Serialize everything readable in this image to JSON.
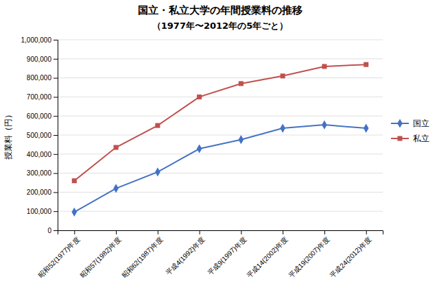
{
  "chart_data": {
    "type": "line",
    "title": "国立・私立大学の年間授業料の推移",
    "subtitle": "（1977年〜2012年の5年ごと）",
    "ylabel": "授業料（円）",
    "categories": [
      "昭和52(1977)年度",
      "昭和57(1982)年度",
      "昭和62(1987)年度",
      "平成4(1992)年度",
      "平成9(1997)年度",
      "平成14(2002)年度",
      "平成19(2007)年度",
      "平成24(2012)年度"
    ],
    "series": [
      {
        "name": "国立",
        "color": "#4472C4",
        "marker": "diamond",
        "values": [
          96000,
          220000,
          306000,
          428000,
          476000,
          535800,
          553500,
          535800
        ]
      },
      {
        "name": "私立",
        "color": "#C0504D",
        "marker": "square",
        "values": [
          260000,
          435000,
          550000,
          700000,
          770000,
          810000,
          860000,
          870000
        ]
      }
    ],
    "ylim": [
      0,
      1000000
    ],
    "yticks": [
      0,
      {
        "value": 100000,
        "label": "100,000"
      },
      {
        "value": 200000,
        "label": "200,000"
      },
      {
        "value": 300000,
        "label": "300,000"
      },
      {
        "value": 400000,
        "label": "400,000"
      },
      {
        "value": 500000,
        "label": "500,000"
      },
      {
        "value": 600000,
        "label": "600,000"
      },
      {
        "value": 700000,
        "label": "700,000"
      },
      {
        "value": 800000,
        "label": "800,000"
      },
      {
        "value": 900000,
        "label": "900,000"
      },
      {
        "value": 1000000,
        "label": "1,000,000"
      }
    ],
    "grid": true,
    "legend": "right"
  }
}
